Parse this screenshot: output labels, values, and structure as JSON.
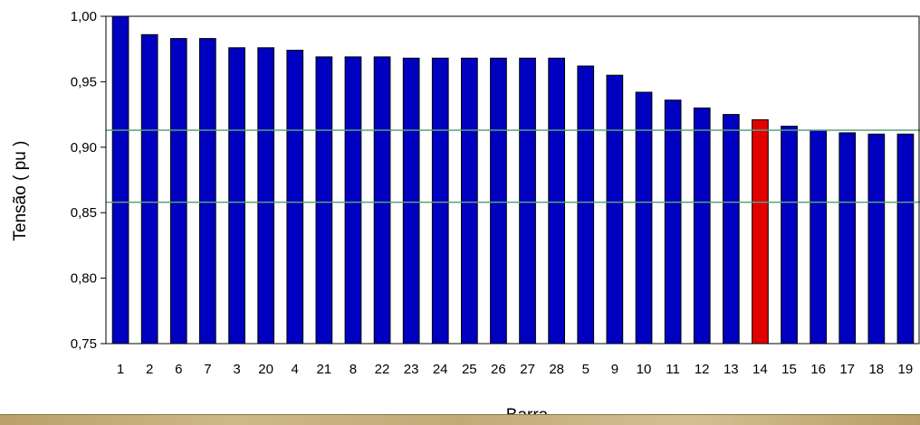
{
  "chart_data": {
    "type": "bar",
    "xlabel": "Barra",
    "ylabel": "Tensão ( pu )",
    "categories": [
      "1",
      "2",
      "6",
      "7",
      "3",
      "20",
      "4",
      "21",
      "8",
      "22",
      "23",
      "24",
      "25",
      "26",
      "27",
      "28",
      "5",
      "9",
      "10",
      "11",
      "12",
      "13",
      "14",
      "15",
      "16",
      "17",
      "18",
      "19"
    ],
    "values": [
      1.0,
      0.986,
      0.983,
      0.983,
      0.976,
      0.976,
      0.974,
      0.969,
      0.969,
      0.969,
      0.968,
      0.968,
      0.968,
      0.968,
      0.968,
      0.968,
      0.962,
      0.955,
      0.942,
      0.936,
      0.93,
      0.925,
      0.921,
      0.916,
      0.913,
      0.911,
      0.91,
      0.91
    ],
    "highlight_category": "14",
    "ylim": [
      0.75,
      1.0
    ],
    "yticks": [
      0.75,
      0.8,
      0.85,
      0.9,
      0.95,
      1.0
    ],
    "ytick_labels": [
      "0,75",
      "0,80",
      "0,85",
      "0,90",
      "0,95",
      "1,00"
    ],
    "reference_lines": [
      0.913,
      0.858
    ],
    "colors": {
      "bar": "#0000c0",
      "bar_highlight": "#e00000",
      "reference_line": "#5e9e7e",
      "axis": "#000000"
    },
    "grid": false,
    "legend": "none"
  }
}
